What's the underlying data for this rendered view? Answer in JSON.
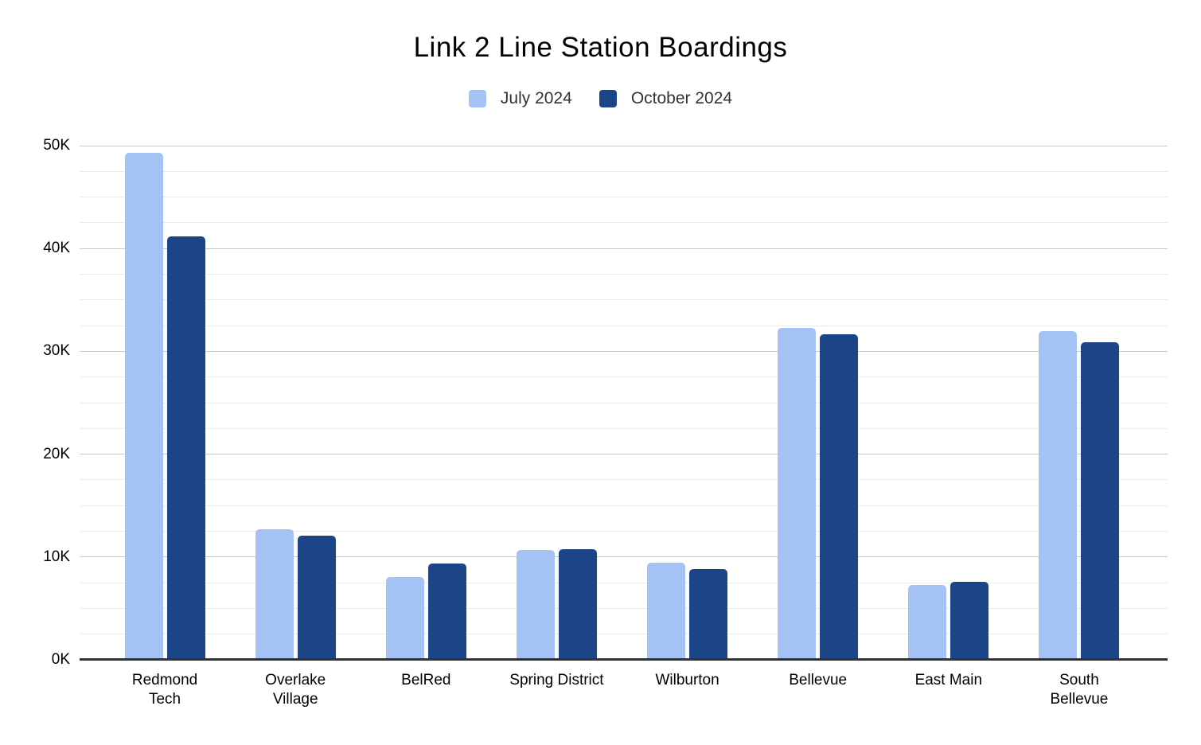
{
  "chart_data": {
    "type": "bar",
    "title": "Link 2 Line Station Boardings",
    "categories": [
      "Redmond Tech",
      "Overlake Village",
      "BelRed",
      "Spring District",
      "Wilburton",
      "Bellevue",
      "East Main",
      "South Bellevue"
    ],
    "category_label_lines": [
      [
        "Redmond",
        "Tech"
      ],
      [
        "Overlake",
        "Village"
      ],
      [
        "BelRed"
      ],
      [
        "Spring District"
      ],
      [
        "Wilburton"
      ],
      [
        "Bellevue"
      ],
      [
        "East Main"
      ],
      [
        "South",
        "Bellevue"
      ]
    ],
    "series": [
      {
        "name": "July 2024",
        "color": "#a4c2f4",
        "values": [
          49300,
          12700,
          8050,
          10700,
          9450,
          32300,
          7250,
          31950
        ]
      },
      {
        "name": "October 2024",
        "color": "#1c4587",
        "values": [
          41200,
          12100,
          9350,
          10750,
          8850,
          31650,
          7550,
          30850
        ]
      }
    ],
    "y_axis": {
      "min": 0,
      "max": 50000,
      "major_step": 10000,
      "minor_step": 2500,
      "tick_labels": [
        "0K",
        "10K",
        "20K",
        "30K",
        "40K",
        "50K"
      ]
    },
    "xlabel": "",
    "ylabel": "",
    "grid": true,
    "legend_position": "top"
  },
  "colors": {
    "series_july": "#a4c2f4",
    "series_october": "#1c4587",
    "gridline_major": "#c9c9c9",
    "gridline_minor": "#ebebeb",
    "axis_baseline": "#333333",
    "title_text": "#000000",
    "legend_text": "#333333"
  }
}
